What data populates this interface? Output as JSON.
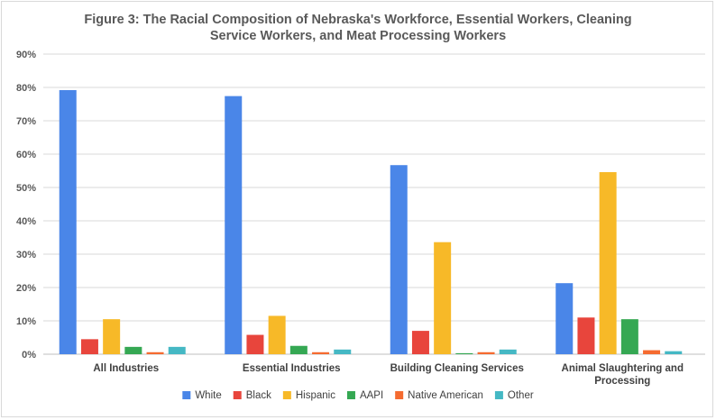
{
  "chart_data": {
    "type": "bar",
    "title_lines": [
      "Figure 3: The Racial Composition of Nebraska's Workforce, Essential Workers, Cleaning",
      "Service Workers, and Meat Processing Workers"
    ],
    "categories": [
      [
        "All Industries"
      ],
      [
        "Essential Industries"
      ],
      [
        "Building Cleaning Services"
      ],
      [
        "Animal Slaughtering and",
        "Processing"
      ]
    ],
    "ylim": [
      0,
      90
    ],
    "yticks": [
      0,
      10,
      20,
      30,
      40,
      50,
      60,
      70,
      80,
      90
    ],
    "ytick_labels": [
      "0%",
      "10%",
      "20%",
      "30%",
      "40%",
      "50%",
      "60%",
      "70%",
      "80%",
      "90%"
    ],
    "grid": true,
    "legend_position": "bottom",
    "series": [
      {
        "name": "White",
        "color": "#4a86e8",
        "values": [
          79.2,
          77.4,
          56.7,
          21.3
        ]
      },
      {
        "name": "Black",
        "color": "#e8453c",
        "values": [
          4.5,
          5.8,
          7.0,
          11.0
        ]
      },
      {
        "name": "Hispanic",
        "color": "#f7b928",
        "values": [
          10.5,
          11.5,
          33.6,
          54.6
        ]
      },
      {
        "name": "AAPI",
        "color": "#35a853",
        "values": [
          2.2,
          2.5,
          0.3,
          10.5
        ]
      },
      {
        "name": "Native American",
        "color": "#f56b30",
        "values": [
          0.6,
          0.6,
          0.6,
          1.2
        ]
      },
      {
        "name": "Other",
        "color": "#45b8c4",
        "values": [
          2.2,
          1.4,
          1.4,
          0.9
        ]
      }
    ]
  }
}
